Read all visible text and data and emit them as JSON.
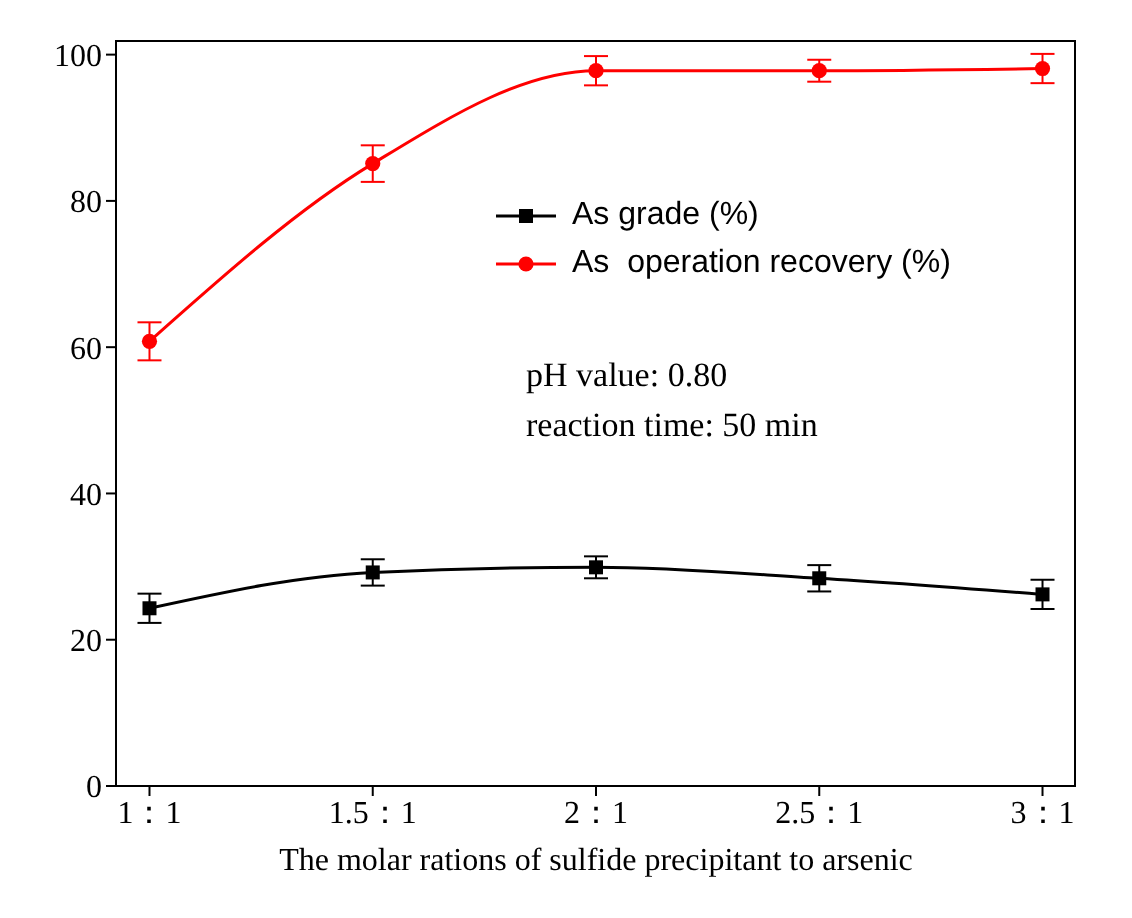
{
  "chart_data": {
    "type": "line",
    "xlabel": "The molar rations of sulfide precipitant to arsenic",
    "categories": [
      "1：1",
      "1.5：1",
      "2：1",
      "2.5：1",
      "3：1"
    ],
    "series": [
      {
        "name": "As grade (%)",
        "color": "#000000",
        "marker": "square",
        "values": [
          24.3,
          29.2,
          29.9,
          28.4,
          26.2
        ],
        "errors": [
          2,
          1.8,
          1.5,
          1.8,
          2
        ]
      },
      {
        "name": "As  operation recovery (%)",
        "color": "#ff0000",
        "marker": "circle",
        "values": [
          60.8,
          85.1,
          97.8,
          97.8,
          98.1
        ],
        "errors": [
          2.6,
          2.5,
          2,
          1.5,
          2
        ]
      }
    ],
    "ylim": [
      0,
      102
    ],
    "yticks": [
      0,
      20,
      40,
      60,
      80,
      100
    ],
    "legend": "top right",
    "line_style": "solid",
    "annotations": [
      "pH value: 0.80",
      "reaction time: 50 min"
    ]
  }
}
